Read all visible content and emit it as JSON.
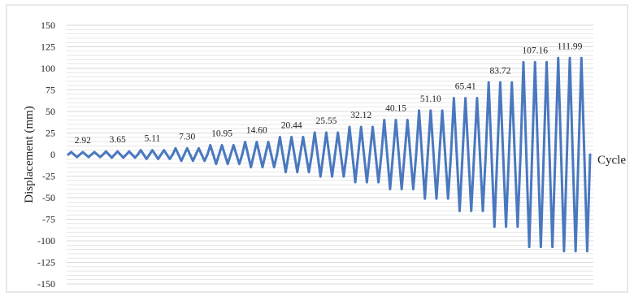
{
  "chart_data": {
    "type": "line",
    "title": "",
    "xlabel": "Cycle",
    "ylabel": "Displacement (mm)",
    "ylim": [
      -150,
      150
    ],
    "yticks": [
      -150,
      -125,
      -100,
      -75,
      -50,
      -25,
      0,
      25,
      50,
      75,
      100,
      125,
      150
    ],
    "grid": true,
    "legend": "none",
    "line_color": "#4a78bf",
    "grid_color": "#d9d9d9",
    "protocol": [
      {
        "amplitude": 2.92,
        "cycles": 3
      },
      {
        "amplitude": 3.65,
        "cycles": 3
      },
      {
        "amplitude": 5.11,
        "cycles": 3
      },
      {
        "amplitude": 7.3,
        "cycles": 3
      },
      {
        "amplitude": 10.95,
        "cycles": 3
      },
      {
        "amplitude": 14.6,
        "cycles": 3
      },
      {
        "amplitude": 20.44,
        "cycles": 3
      },
      {
        "amplitude": 25.55,
        "cycles": 3
      },
      {
        "amplitude": 32.12,
        "cycles": 3
      },
      {
        "amplitude": 40.15,
        "cycles": 3
      },
      {
        "amplitude": 51.1,
        "cycles": 3
      },
      {
        "amplitude": 65.41,
        "cycles": 3
      },
      {
        "amplitude": 83.72,
        "cycles": 3
      },
      {
        "amplitude": 107.16,
        "cycles": 3
      },
      {
        "amplitude": 111.99,
        "cycles": 3
      }
    ],
    "data_labels": [
      "2.92",
      "3.65",
      "5.11",
      "7.30",
      "10.95",
      "14.60",
      "20.44",
      "25.55",
      "32.12",
      "40.15",
      "51.10",
      "65.41",
      "83.72",
      "107.16",
      "111.99"
    ]
  }
}
